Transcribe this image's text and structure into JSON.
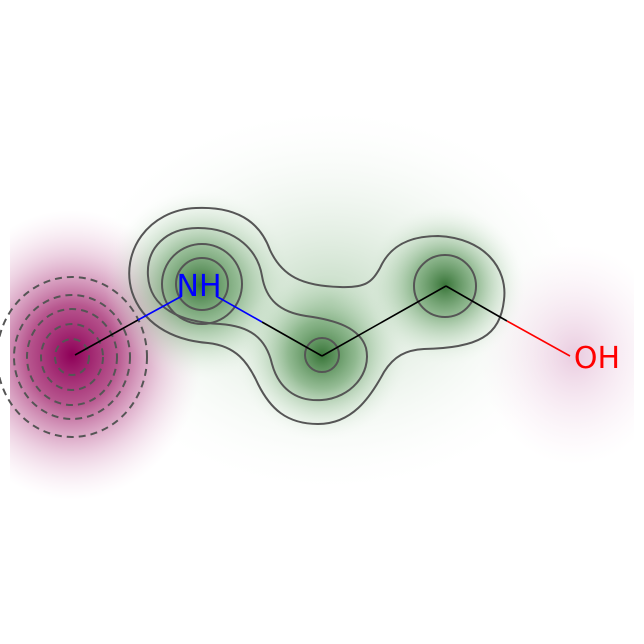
{
  "molecule": {
    "atoms": [
      {
        "id": "C1",
        "label": "",
        "weight": -1.0
      },
      {
        "id": "N",
        "label": "NH",
        "color": "#0000ff",
        "weight": 0.85
      },
      {
        "id": "C2",
        "label": "",
        "weight": 0.55
      },
      {
        "id": "C3",
        "label": "",
        "weight": 0.55
      },
      {
        "id": "O",
        "label": "OH",
        "color": "#ff0000",
        "weight": -0.25
      }
    ],
    "bonds": [
      {
        "from": "C1",
        "to": "N"
      },
      {
        "from": "N",
        "to": "C2"
      },
      {
        "from": "C2",
        "to": "C3"
      },
      {
        "from": "C3",
        "to": "O"
      }
    ]
  },
  "colors": {
    "positive": "#2e7d32",
    "negative": "#99005c",
    "bond": "#000000",
    "contour": "#555555"
  }
}
